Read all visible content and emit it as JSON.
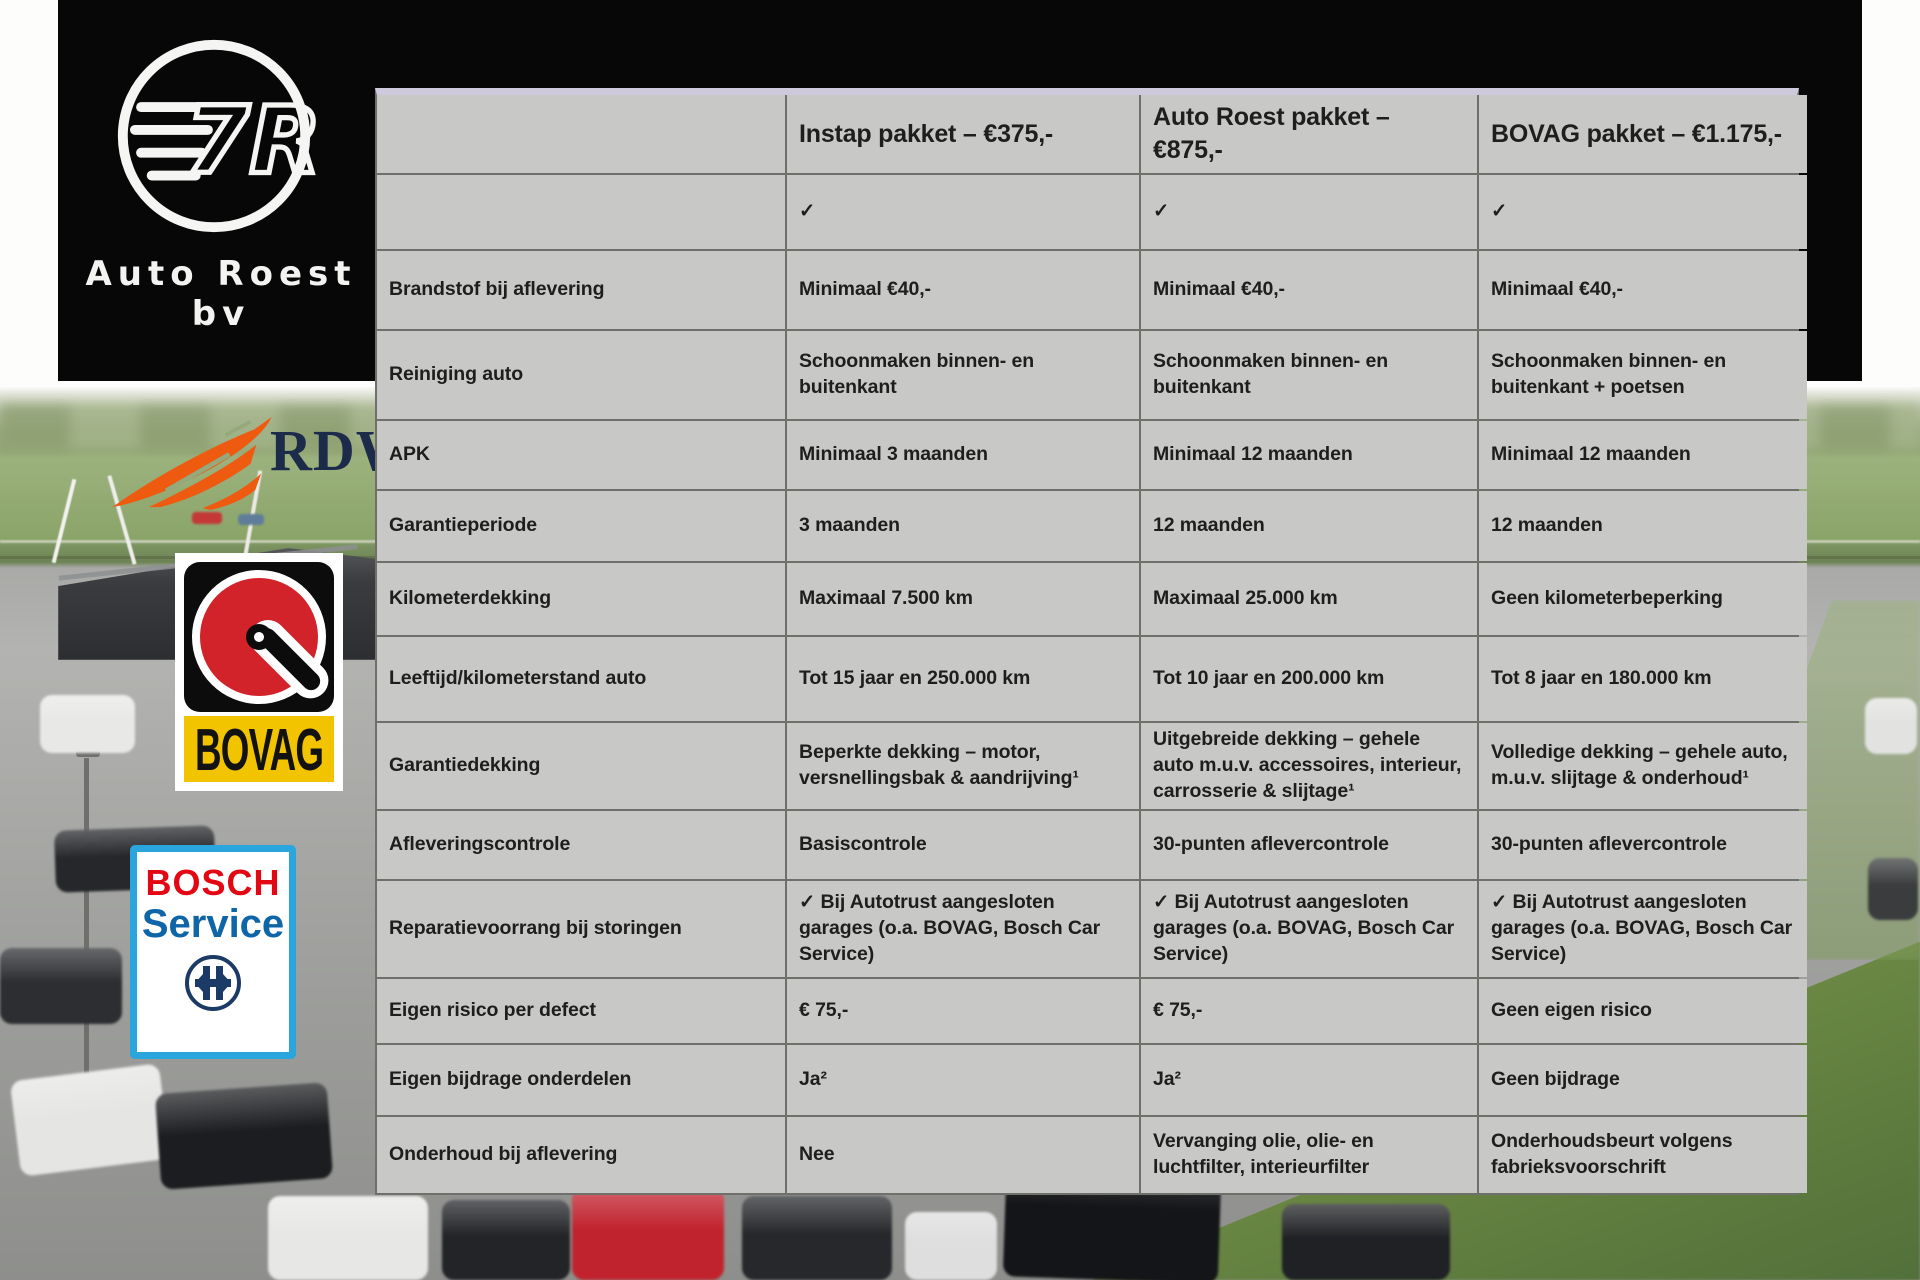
{
  "brand": {
    "name": "Auto Roest bv",
    "logo_monogram": "7R"
  },
  "logos": {
    "rdw": "RDW",
    "bovag": "BOVAG",
    "bosch_line1": "BOSCH",
    "bosch_line2": "Service"
  },
  "table": {
    "columns": [
      "",
      "Instap pakket – €375,-",
      "Auto Roest pakket – €875,-",
      "BOVAG pakket – €1.175,-"
    ],
    "rows": [
      {
        "label": "",
        "cells": [
          "✓",
          "✓",
          "✓"
        ]
      },
      {
        "label": "Brandstof bij aflevering",
        "cells": [
          "Minimaal €40,-",
          "Minimaal €40,-",
          "Minimaal €40,-"
        ]
      },
      {
        "label": "Reiniging auto",
        "cells": [
          "Schoonmaken binnen- en buitenkant",
          "Schoonmaken binnen- en buitenkant",
          "Schoonmaken binnen- en buitenkant + poetsen"
        ]
      },
      {
        "label": "APK",
        "cells": [
          "Minimaal 3 maanden",
          "Minimaal 12 maanden",
          "Minimaal 12 maanden"
        ]
      },
      {
        "label": "Garantieperiode",
        "cells": [
          "3 maanden",
          "12 maanden",
          "12 maanden"
        ]
      },
      {
        "label": "Kilometerdekking",
        "cells": [
          "Maximaal 7.500 km",
          "Maximaal 25.000 km",
          "Geen kilometerbeperking"
        ]
      },
      {
        "label": "Leeftijd/kilometerstand auto",
        "cells": [
          "Tot 15 jaar en 250.000 km",
          "Tot 10 jaar en 200.000 km",
          "Tot 8 jaar en 180.000 km"
        ]
      },
      {
        "label": "Garantiedekking",
        "cells": [
          "Beperkte dekking – motor, versnellingsbak & aandrijving¹",
          "Uitgebreide dekking – gehele auto m.u.v. accessoires, interieur, carrosserie & slijtage¹",
          "Volledige dekking – gehele auto, m.u.v. slijtage & onderhoud¹"
        ]
      },
      {
        "label": "Afleveringscontrole",
        "cells": [
          "Basiscontrole",
          "30-punten aflevercontrole",
          "30-punten aflevercontrole"
        ]
      },
      {
        "label": "Reparatievoorrang bij storingen",
        "cells": [
          "✓ Bij Autotrust aangesloten garages (o.a. BOVAG, Bosch Car Service)",
          "✓ Bij Autotrust aangesloten garages (o.a. BOVAG, Bosch Car Service)",
          "✓ Bij Autotrust aangesloten garages (o.a. BOVAG, Bosch Car Service)"
        ]
      },
      {
        "label": "Eigen risico per defect",
        "cells": [
          "€ 75,-",
          "€ 75,-",
          "Geen eigen risico"
        ]
      },
      {
        "label": "Eigen bijdrage onderdelen",
        "cells": [
          "Ja²",
          "Ja²",
          "Geen bijdrage"
        ]
      },
      {
        "label": "Onderhoud bij aflevering",
        "cells": [
          "Nee",
          "Vervanging olie, olie- en luchtfilter, interieurfilter",
          "Onderhoudsbeurt volgens fabrieksvoorschrift"
        ]
      }
    ]
  },
  "colors": {
    "panel_black": "#070707",
    "table_cell_bg": "#c8c8c6",
    "table_grid_line": "#6f6f6c",
    "table_top_strip": "#cfc9dc",
    "bovag_yellow": "#f2c400",
    "bovag_red": "#d2232a",
    "bosch_red": "#e30613",
    "bosch_blue": "#2aa5dd",
    "bosch_service_blue": "#0e65a8",
    "rdw_orange": "#ed5a10",
    "rdw_navy": "#1d2b4a",
    "grass_green": "#6d8a44"
  }
}
